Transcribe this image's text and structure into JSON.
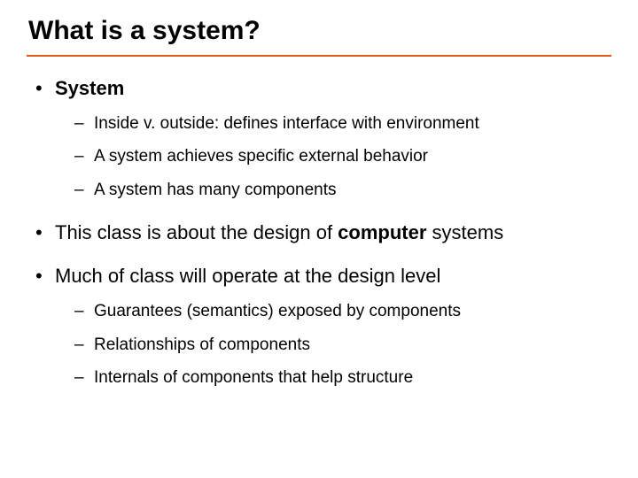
{
  "title": "What is a system?",
  "rule_color": "#d86018",
  "bullets": {
    "b1": {
      "label": "System",
      "bold": true,
      "sub": {
        "s1": "Inside v. outside: defines interface with environment",
        "s2": "A system achieves specific external behavior",
        "s3": "A system has many components"
      }
    },
    "b2": {
      "prefix": "This class is about the design of ",
      "bold_word": "computer",
      "suffix": " systems"
    },
    "b3": {
      "label": "Much of class will operate at the design level",
      "sub": {
        "s1": "Guarantees (semantics) exposed by components",
        "s2": "Relationships of components",
        "s3": "Internals of components that help structure"
      }
    }
  },
  "typography": {
    "title_fontsize": 30,
    "bullet1_fontsize": 22,
    "bullet2_fontsize": 19,
    "font_family": "Arial",
    "text_color": "#000000",
    "background_color": "#ffffff"
  }
}
